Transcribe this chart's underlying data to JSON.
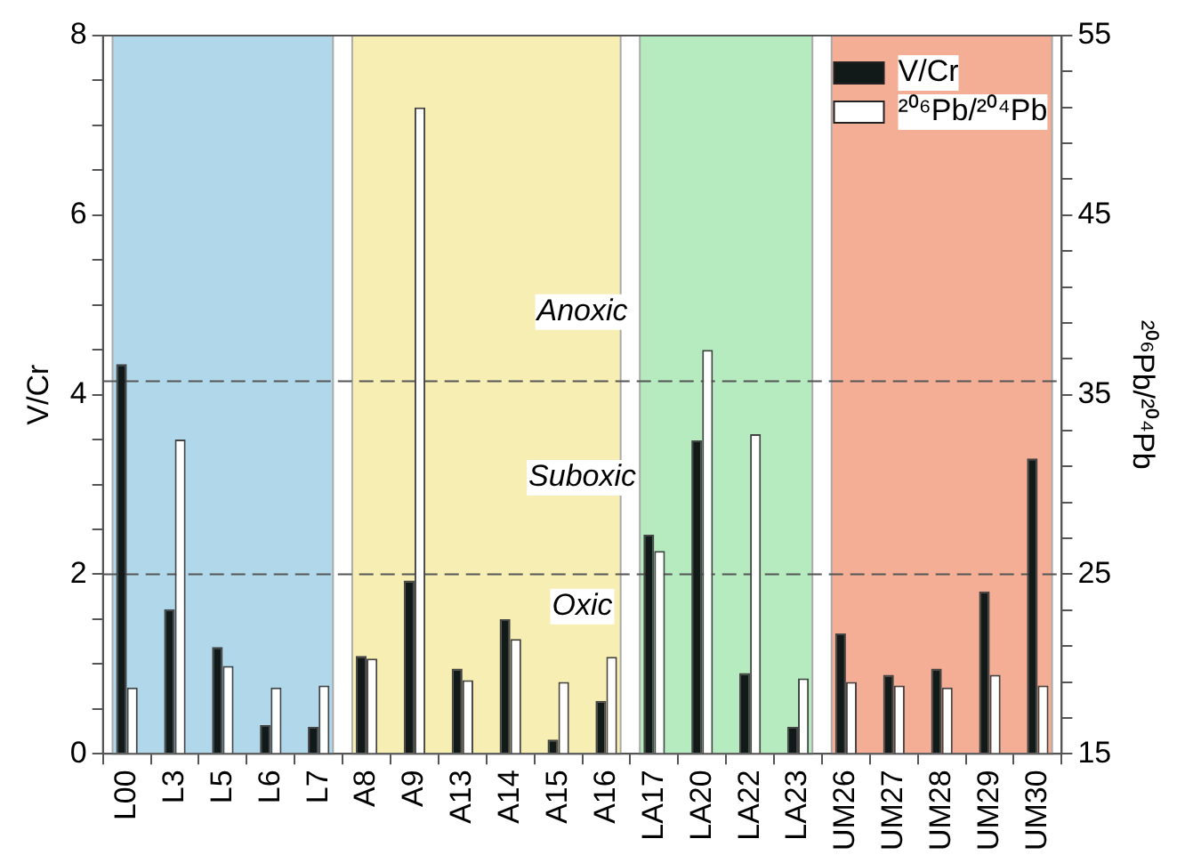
{
  "chart_data": {
    "type": "bar",
    "categories": [
      "L00",
      "L3",
      "L5",
      "L6",
      "L7",
      "A8",
      "A9",
      "A13",
      "A14",
      "A15",
      "A16",
      "LA17",
      "LA20",
      "LA22",
      "LA23",
      "UM26",
      "UM27",
      "UM28",
      "UM29",
      "UM30"
    ],
    "series": [
      {
        "name": "V/Cr",
        "color": "#111a18",
        "values": [
          4.34,
          1.61,
          1.19,
          0.32,
          0.3,
          1.09,
          1.93,
          0.95,
          1.5,
          0.16,
          0.59,
          2.44,
          3.49,
          0.9,
          0.3,
          1.34,
          0.88,
          0.95,
          1.81,
          3.29
        ]
      },
      {
        "name": "²⁰⁶Pb/²⁰⁴Pb",
        "color": "#ffffff",
        "axis": "y2",
        "values": [
          18.7,
          32.5,
          19.9,
          18.7,
          18.8,
          20.3,
          51.0,
          19.1,
          21.4,
          19.0,
          20.4,
          26.3,
          37.5,
          32.8,
          19.2,
          19.0,
          18.8,
          18.7,
          19.4,
          18.8
        ]
      }
    ],
    "ylabel": "V/Cr",
    "y2label": "²⁰⁶Pb/²⁰⁴Pb",
    "ylim": [
      0,
      8
    ],
    "yticks": [
      0,
      {
        "value": 0.5,
        "label": null
      },
      {
        "value": 1,
        "label": null
      },
      {
        "value": 1.5,
        "label": null
      },
      2,
      {
        "value": 2.5,
        "label": null
      },
      {
        "value": 3,
        "label": null
      },
      {
        "value": 3.5,
        "label": null
      },
      4,
      {
        "value": 4.5,
        "label": null
      },
      {
        "value": 5,
        "label": null
      },
      {
        "value": 5.5,
        "label": null
      },
      6,
      {
        "value": 6.5,
        "label": null
      },
      {
        "value": 7,
        "label": null
      },
      {
        "value": 7.5,
        "label": null
      },
      8
    ],
    "y2lim": [
      15,
      55
    ],
    "y2ticks": [
      15,
      {
        "value": 17,
        "label": null
      },
      {
        "value": 19,
        "label": null
      },
      {
        "value": 21,
        "label": null
      },
      {
        "value": 23,
        "label": null
      },
      25,
      {
        "value": 27,
        "label": null
      },
      {
        "value": 29,
        "label": null
      },
      {
        "value": 31,
        "label": null
      },
      {
        "value": 33,
        "label": null
      },
      35,
      {
        "value": 37,
        "label": null
      },
      {
        "value": 39,
        "label": null
      },
      {
        "value": 41,
        "label": null
      },
      {
        "value": 43,
        "label": null
      },
      45,
      {
        "value": 47,
        "label": null
      },
      {
        "value": 49,
        "label": null
      },
      {
        "value": 51,
        "label": null
      },
      {
        "value": 53,
        "label": null
      },
      55
    ],
    "ref_lines": [
      {
        "axis": "y",
        "value": 4.15,
        "color": "#555555",
        "line_style": "dashed"
      },
      {
        "axis": "y",
        "value": 2.0,
        "color": "#555555",
        "line_style": "dashed"
      }
    ],
    "bands": [
      {
        "axis": "x",
        "from": "L00",
        "to": "L7",
        "color": "#b0d8ea"
      },
      {
        "axis": "x",
        "from": "A8",
        "to": "A16",
        "color": "#f7eeb3"
      },
      {
        "axis": "x",
        "from": "LA17",
        "to": "LA23",
        "color": "#b5ebbf"
      },
      {
        "axis": "x",
        "from": "UM26",
        "to": "UM30",
        "color": "#f4ae96"
      }
    ],
    "annotations": [
      "Anoxic",
      "Suboxic",
      "Oxic"
    ],
    "legend": "top right",
    "grid": false
  }
}
